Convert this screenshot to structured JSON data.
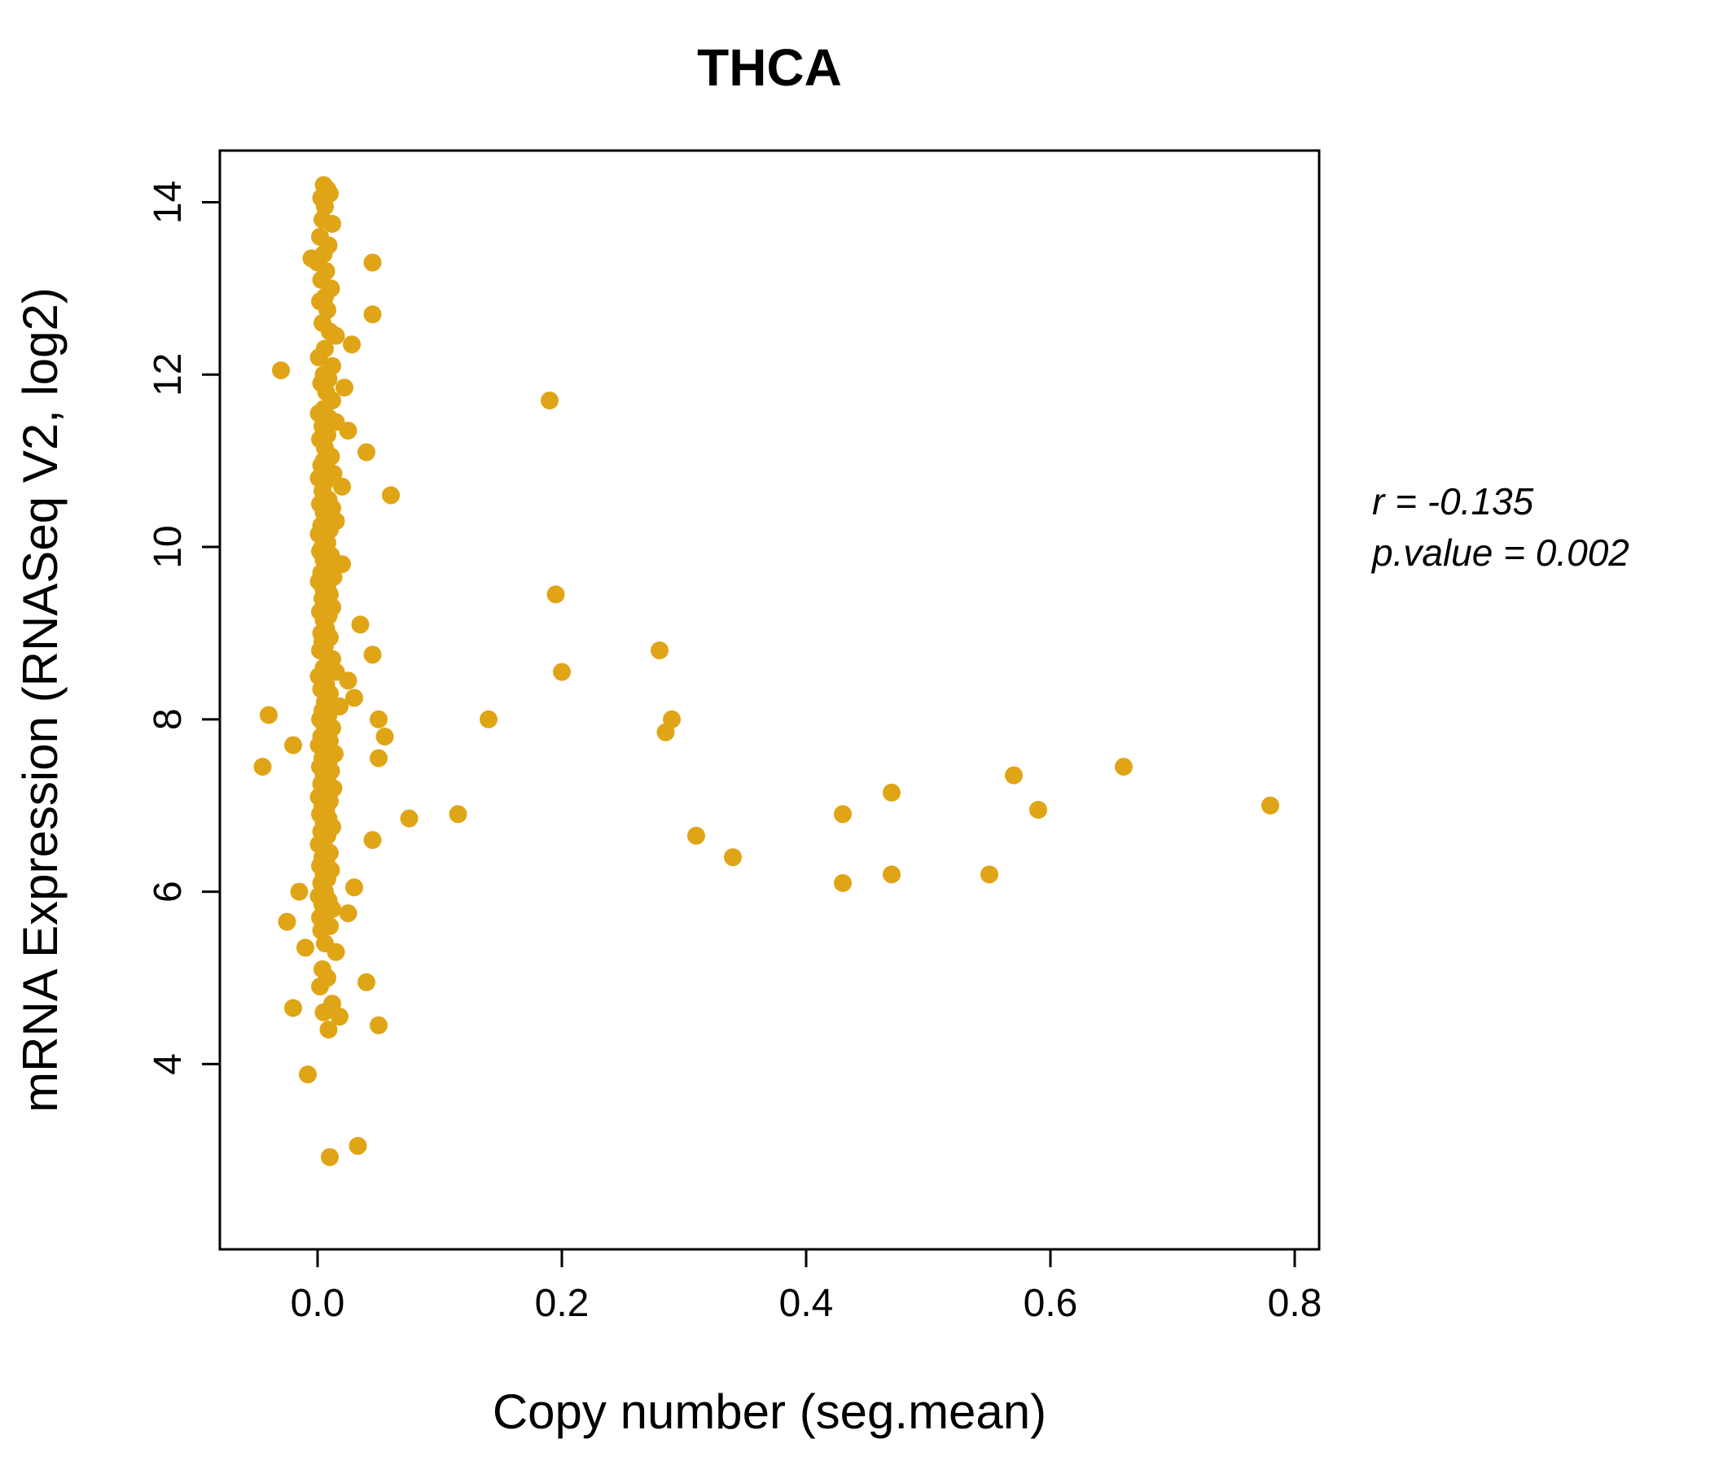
{
  "chart_data": {
    "type": "scatter",
    "title": "THCA",
    "xlabel": "Copy number (seg.mean)",
    "ylabel": "mRNA Expression (RNASeq V2, log2)",
    "xlim": [
      -0.08,
      0.82
    ],
    "ylim": [
      1.85,
      14.6
    ],
    "x_ticks": [
      0.0,
      0.2,
      0.4,
      0.6,
      0.8
    ],
    "x_tick_labels": [
      "0.0",
      "0.2",
      "0.4",
      "0.6",
      "0.8"
    ],
    "y_ticks": [
      4,
      6,
      8,
      10,
      12,
      14
    ],
    "y_tick_labels": [
      "4",
      "6",
      "8",
      "10",
      "12",
      "14"
    ],
    "grid": false,
    "legend": "none",
    "point_color": "#E0A516",
    "title_color": "#E0A516",
    "annotation": {
      "line1": "r = -0.135",
      "line2": "p.value = 0.002"
    },
    "points": [
      [
        0.005,
        14.2
      ],
      [
        0.008,
        14.15
      ],
      [
        0.003,
        14.05
      ],
      [
        0.01,
        14.1
      ],
      [
        0.006,
        13.95
      ],
      [
        0.004,
        13.8
      ],
      [
        0.012,
        13.75
      ],
      [
        0.002,
        13.6
      ],
      [
        0.009,
        13.5
      ],
      [
        0.005,
        13.4
      ],
      [
        -0.005,
        13.35
      ],
      [
        0.045,
        13.3
      ],
      [
        0.0,
        13.3
      ],
      [
        0.007,
        13.2
      ],
      [
        0.003,
        13.1
      ],
      [
        0.011,
        13.0
      ],
      [
        0.006,
        12.9
      ],
      [
        0.002,
        12.85
      ],
      [
        0.008,
        12.75
      ],
      [
        0.045,
        12.7
      ],
      [
        0.004,
        12.6
      ],
      [
        0.01,
        12.5
      ],
      [
        0.015,
        12.45
      ],
      [
        0.028,
        12.35
      ],
      [
        0.006,
        12.3
      ],
      [
        0.001,
        12.2
      ],
      [
        0.012,
        12.1
      ],
      [
        -0.03,
        12.05
      ],
      [
        0.005,
        12.0
      ],
      [
        0.009,
        11.95
      ],
      [
        0.003,
        11.9
      ],
      [
        0.022,
        11.85
      ],
      [
        0.007,
        11.8
      ],
      [
        0.19,
        11.7
      ],
      [
        0.012,
        11.7
      ],
      [
        0.005,
        11.6
      ],
      [
        0.001,
        11.55
      ],
      [
        0.009,
        11.5
      ],
      [
        0.015,
        11.45
      ],
      [
        0.004,
        11.4
      ],
      [
        0.025,
        11.35
      ],
      [
        0.008,
        11.3
      ],
      [
        0.002,
        11.25
      ],
      [
        0.006,
        11.15
      ],
      [
        0.04,
        11.1
      ],
      [
        0.011,
        11.05
      ],
      [
        0.005,
        11.0
      ],
      [
        0.003,
        10.95
      ],
      [
        0.008,
        10.9
      ],
      [
        0.013,
        10.85
      ],
      [
        0.001,
        10.8
      ],
      [
        0.006,
        10.75
      ],
      [
        0.02,
        10.7
      ],
      [
        0.004,
        10.65
      ],
      [
        0.06,
        10.6
      ],
      [
        0.009,
        10.55
      ],
      [
        0.002,
        10.5
      ],
      [
        0.012,
        10.45
      ],
      [
        0.005,
        10.4
      ],
      [
        0.007,
        10.35
      ],
      [
        0.015,
        10.3
      ],
      [
        0.003,
        10.25
      ],
      [
        0.01,
        10.2
      ],
      [
        0.001,
        10.15
      ],
      [
        0.006,
        10.1
      ],
      [
        0.008,
        10.05
      ],
      [
        0.004,
        10.0
      ],
      [
        0.002,
        9.95
      ],
      [
        0.011,
        9.9
      ],
      [
        0.005,
        9.85
      ],
      [
        0.02,
        9.8
      ],
      [
        0.007,
        9.75
      ],
      [
        0.003,
        9.7
      ],
      [
        0.013,
        9.65
      ],
      [
        0.001,
        9.6
      ],
      [
        0.008,
        9.55
      ],
      [
        0.005,
        9.5
      ],
      [
        0.195,
        9.45
      ],
      [
        0.01,
        9.45
      ],
      [
        0.004,
        9.4
      ],
      [
        0.006,
        9.35
      ],
      [
        0.012,
        9.3
      ],
      [
        0.002,
        9.25
      ],
      [
        0.009,
        9.2
      ],
      [
        0.005,
        9.15
      ],
      [
        0.035,
        9.1
      ],
      [
        0.007,
        9.05
      ],
      [
        0.003,
        9.0
      ],
      [
        0.01,
        8.95
      ],
      [
        0.004,
        8.9
      ],
      [
        0.006,
        8.85
      ],
      [
        0.28,
        8.8
      ],
      [
        0.002,
        8.8
      ],
      [
        0.045,
        8.75
      ],
      [
        0.012,
        8.7
      ],
      [
        0.008,
        8.65
      ],
      [
        0.005,
        8.6
      ],
      [
        0.2,
        8.55
      ],
      [
        0.015,
        8.55
      ],
      [
        0.001,
        8.5
      ],
      [
        0.025,
        8.45
      ],
      [
        0.007,
        8.4
      ],
      [
        0.003,
        8.35
      ],
      [
        0.01,
        8.3
      ],
      [
        0.03,
        8.25
      ],
      [
        0.006,
        8.2
      ],
      [
        0.018,
        8.15
      ],
      [
        0.004,
        8.1
      ],
      [
        -0.04,
        8.05
      ],
      [
        0.009,
        8.05
      ],
      [
        0.05,
        8.0
      ],
      [
        0.14,
        8.0
      ],
      [
        0.29,
        8.0
      ],
      [
        0.002,
        8.0
      ],
      [
        0.005,
        7.95
      ],
      [
        0.012,
        7.9
      ],
      [
        0.285,
        7.85
      ],
      [
        0.007,
        7.85
      ],
      [
        0.055,
        7.8
      ],
      [
        0.003,
        7.8
      ],
      [
        0.01,
        7.75
      ],
      [
        0.001,
        7.7
      ],
      [
        -0.02,
        7.7
      ],
      [
        0.006,
        7.65
      ],
      [
        0.014,
        7.6
      ],
      [
        0.05,
        7.55
      ],
      [
        0.004,
        7.55
      ],
      [
        0.009,
        7.5
      ],
      [
        -0.045,
        7.45
      ],
      [
        0.66,
        7.45
      ],
      [
        0.002,
        7.45
      ],
      [
        0.011,
        7.4
      ],
      [
        0.57,
        7.35
      ],
      [
        0.005,
        7.35
      ],
      [
        0.008,
        7.3
      ],
      [
        0.003,
        7.25
      ],
      [
        0.013,
        7.2
      ],
      [
        0.47,
        7.15
      ],
      [
        0.006,
        7.15
      ],
      [
        0.001,
        7.1
      ],
      [
        0.01,
        7.05
      ],
      [
        0.78,
        7.0
      ],
      [
        0.004,
        7.0
      ],
      [
        0.59,
        6.95
      ],
      [
        0.007,
        6.95
      ],
      [
        0.115,
        6.9
      ],
      [
        0.43,
        6.9
      ],
      [
        0.002,
        6.9
      ],
      [
        0.009,
        6.85
      ],
      [
        0.075,
        6.85
      ],
      [
        0.005,
        6.8
      ],
      [
        0.012,
        6.75
      ],
      [
        0.003,
        6.7
      ],
      [
        0.31,
        6.65
      ],
      [
        0.008,
        6.65
      ],
      [
        0.045,
        6.6
      ],
      [
        0.001,
        6.55
      ],
      [
        0.006,
        6.5
      ],
      [
        0.01,
        6.45
      ],
      [
        0.34,
        6.4
      ],
      [
        0.004,
        6.4
      ],
      [
        0.007,
        6.35
      ],
      [
        0.002,
        6.3
      ],
      [
        0.011,
        6.25
      ],
      [
        0.47,
        6.2
      ],
      [
        0.55,
        6.2
      ],
      [
        0.005,
        6.2
      ],
      [
        0.008,
        6.15
      ],
      [
        0.43,
        6.1
      ],
      [
        0.003,
        6.1
      ],
      [
        0.03,
        6.05
      ],
      [
        0.006,
        6.0
      ],
      [
        -0.015,
        6.0
      ],
      [
        0.001,
        5.95
      ],
      [
        0.009,
        5.9
      ],
      [
        0.004,
        5.85
      ],
      [
        0.012,
        5.8
      ],
      [
        0.025,
        5.75
      ],
      [
        0.007,
        5.75
      ],
      [
        0.002,
        5.7
      ],
      [
        -0.025,
        5.65
      ],
      [
        0.005,
        5.65
      ],
      [
        0.01,
        5.6
      ],
      [
        0.003,
        5.55
      ],
      [
        0.006,
        5.4
      ],
      [
        -0.01,
        5.35
      ],
      [
        0.015,
        5.3
      ],
      [
        0.004,
        5.1
      ],
      [
        0.008,
        5.0
      ],
      [
        0.04,
        4.95
      ],
      [
        0.002,
        4.9
      ],
      [
        0.012,
        4.7
      ],
      [
        -0.02,
        4.65
      ],
      [
        0.005,
        4.6
      ],
      [
        0.018,
        4.55
      ],
      [
        0.05,
        4.45
      ],
      [
        0.009,
        4.4
      ],
      [
        -0.008,
        3.88
      ],
      [
        0.033,
        3.05
      ],
      [
        0.01,
        2.92
      ]
    ]
  }
}
